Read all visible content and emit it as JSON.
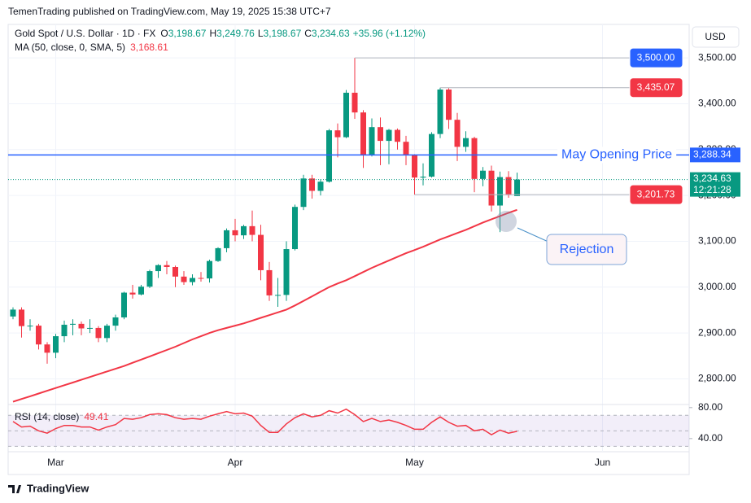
{
  "header": {
    "byline": "TemenTrading published on TradingView.com, May 19, 2025 15:38 UTC+7"
  },
  "currency": "USD",
  "footer": {
    "brand": "TradingView"
  },
  "chart_data": [
    {
      "type": "candlestick",
      "title": "Gold Spot / U.S. Dollar · 1D · FX",
      "ohlc_legend": [
        {
          "label": "O",
          "value": "3,198.67"
        },
        {
          "label": "H",
          "value": "3,249.76"
        },
        {
          "label": "L",
          "value": "3,198.67"
        },
        {
          "label": "C",
          "value": "3,234.63"
        }
      ],
      "change": "+35.96 (+1.12%)",
      "open": [
        2936,
        2951,
        2915,
        2916,
        2875,
        2857,
        2893,
        2918,
        2920,
        2910,
        2911,
        2889,
        2916,
        2934,
        2988,
        2984,
        3001,
        3035,
        3048,
        3044,
        3023,
        3011,
        3020,
        3019,
        3057,
        3085,
        3124,
        3113,
        3133,
        3114,
        3037,
        2982,
        2983,
        3083,
        3175,
        3237,
        3210,
        3230,
        3342,
        3327,
        3424,
        3381,
        3288,
        3349,
        3319,
        3343,
        3317,
        3288.34,
        3239,
        3241,
        3334,
        3431,
        3365,
        3306,
        3325,
        3236,
        3254,
        3178,
        3240,
        3198.67
      ],
      "high": [
        2956,
        2956,
        2930,
        2920,
        2880,
        2898,
        2927,
        2930,
        2925,
        2930,
        2915,
        2920,
        2940,
        2990,
        3005,
        3005,
        3038,
        3050,
        3057,
        3047,
        3035,
        3028,
        3033,
        3060,
        3087,
        3128,
        3149,
        3136,
        3167,
        3136,
        3055,
        3020,
        3100,
        3180,
        3245,
        3245,
        3235,
        3345,
        3357,
        3430,
        3500,
        3386,
        3368,
        3370,
        3345,
        3346,
        3330,
        3290,
        3270,
        3338,
        3435.07,
        3434,
        3380,
        3340,
        3328,
        3262,
        3265,
        3252,
        3253,
        3249.76
      ],
      "low": [
        2930,
        2890,
        2905,
        2864,
        2833,
        2845,
        2880,
        2895,
        2895,
        2900,
        2880,
        2880,
        2905,
        2930,
        2975,
        2982,
        2998,
        3020,
        3028,
        3000,
        3005,
        3004,
        3012,
        3010,
        3055,
        3076,
        3100,
        3105,
        3100,
        3015,
        2970,
        2957,
        2970,
        3080,
        3168,
        3193,
        3200,
        3228,
        3283,
        3325,
        3367,
        3260,
        3285,
        3266,
        3268,
        3300,
        3266,
        3201.73,
        3222,
        3239,
        3325,
        3345,
        3275,
        3295,
        3207,
        3220,
        3165,
        3120,
        3195,
        3198.67
      ],
      "close": [
        2951,
        2915,
        2916,
        2875,
        2857,
        2893,
        2918,
        2920,
        2910,
        2911,
        2889,
        2916,
        2934,
        2988,
        2984,
        3001,
        3035,
        3048,
        3044,
        3023,
        3011,
        3020,
        3019,
        3057,
        3085,
        3124,
        3113,
        3133,
        3114,
        3037,
        2982,
        2983,
        3083,
        3175,
        3237,
        3210,
        3230,
        3342,
        3327,
        3424,
        3381,
        3288,
        3349,
        3319,
        3343,
        3317,
        3288,
        3239,
        3241,
        3334,
        3431,
        3365,
        3306,
        3325,
        3236,
        3254,
        3178,
        3240,
        3201,
        3234.63
      ],
      "up_color": "#089981",
      "down_color": "#f23645",
      "overlay": {
        "name": "MA (50, close, 0, SMA, 5)",
        "value_label": "3,168.61",
        "color": "#f23645",
        "values": [
          2750,
          2756,
          2762,
          2768,
          2774,
          2780,
          2786,
          2792,
          2798,
          2804,
          2810,
          2816,
          2822,
          2828,
          2835,
          2842,
          2849,
          2856,
          2863,
          2870,
          2878,
          2886,
          2893,
          2900,
          2906,
          2911,
          2916,
          2921,
          2927,
          2933,
          2939,
          2945,
          2951,
          2960,
          2970,
          2980,
          2990,
          3000,
          3008,
          3015,
          3024,
          3033,
          3042,
          3050,
          3058,
          3066,
          3074,
          3081,
          3088,
          3096,
          3104,
          3111,
          3118,
          3125,
          3133,
          3141,
          3148,
          3155,
          3162,
          3168.61
        ]
      },
      "xlim": [
        -0.57,
        79.14
      ],
      "xticks": [
        {
          "value": 5,
          "label": "Mar"
        },
        {
          "value": 26,
          "label": "Apr"
        },
        {
          "value": 47,
          "label": "May"
        },
        {
          "value": 69,
          "label": "Jun"
        }
      ],
      "ylim": [
        2744,
        3573
      ],
      "yticks": [
        {
          "value": 2800,
          "label": "2,800.00"
        },
        {
          "value": 2900,
          "label": "2,900.00"
        },
        {
          "value": 3000,
          "label": "3,000.00"
        },
        {
          "value": 3100,
          "label": "3,100.00"
        },
        {
          "value": 3200,
          "label": "3,200.00"
        },
        {
          "value": 3300,
          "label": "3,300.00"
        },
        {
          "value": 3400,
          "label": "3,400.00"
        },
        {
          "value": 3500,
          "label": "3,500.00"
        }
      ],
      "grid": true,
      "price_levels": [
        {
          "value": 3500,
          "label": "3,500.00",
          "color": "#2962ff"
        },
        {
          "value": 3435.07,
          "label": "3,435.07",
          "color": "#f23645"
        },
        {
          "value": 3201.73,
          "label": "3,201.73",
          "color": "#f23645"
        }
      ],
      "horizontal_line": {
        "value": 3288.34,
        "label": "3,288.34",
        "text": "May Opening Price",
        "color": "#2962ff"
      },
      "last_price": {
        "value": 3234.63,
        "label": "3,234.63",
        "countdown": "12:21:28",
        "color": "#089981"
      },
      "annotations": [
        {
          "text": "Rejection"
        }
      ]
    },
    {
      "type": "line",
      "title": "RSI (14, close)",
      "value_label": "49.41",
      "color": "#f23645",
      "values": [
        62,
        55,
        56,
        50,
        47,
        53,
        57,
        57,
        55,
        55,
        51,
        55,
        58,
        66,
        65,
        67,
        71,
        72,
        71,
        67,
        65,
        66,
        65,
        69,
        72,
        75,
        72,
        73,
        69,
        57,
        48,
        48,
        59,
        67,
        72,
        68,
        70,
        76,
        73,
        78,
        71,
        62,
        66,
        62,
        64,
        61,
        57,
        52,
        52,
        61,
        68,
        61,
        56,
        57,
        50,
        52,
        45,
        51,
        47,
        49.41
      ],
      "ylim": [
        23,
        84
      ],
      "yticks": [
        {
          "value": 80,
          "label": "80.00"
        },
        {
          "value": 40,
          "label": "40.00"
        }
      ],
      "band": [
        30,
        70
      ],
      "dashed_levels": [
        30,
        50,
        70
      ]
    }
  ]
}
